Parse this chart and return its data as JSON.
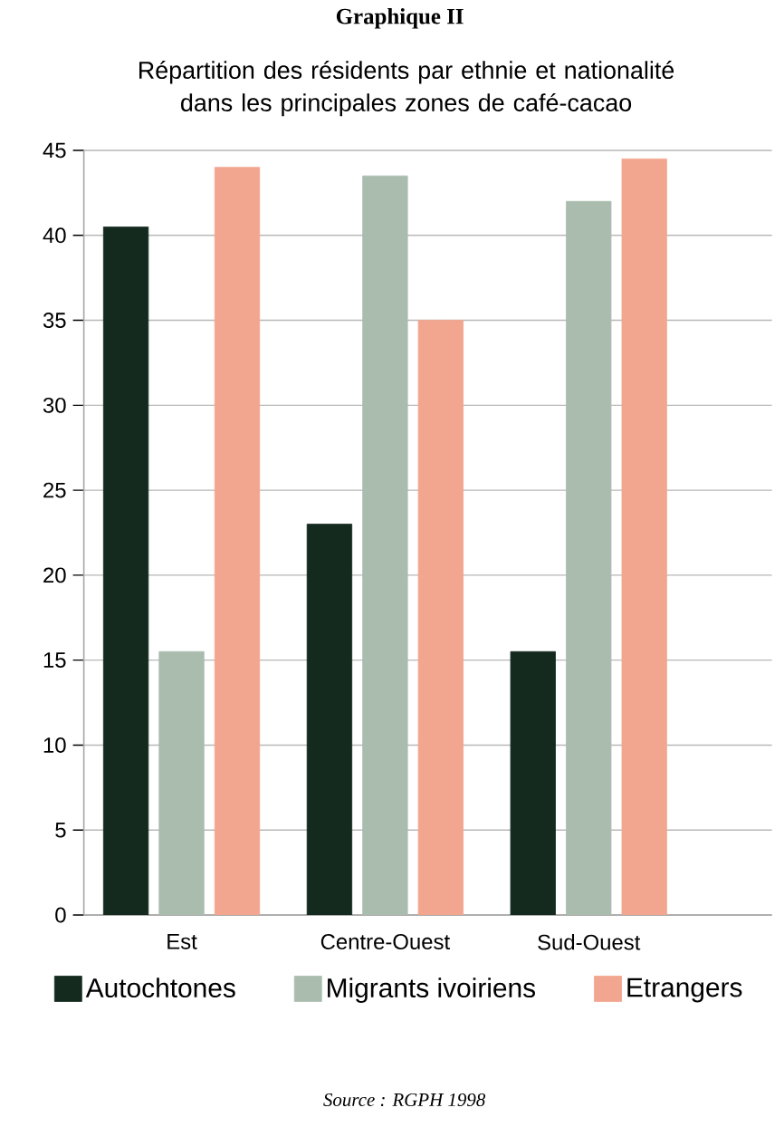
{
  "chart_data": {
    "type": "bar",
    "title": "Graphique II",
    "subtitle": "Répartition des résidents par ethnie et nationalité dans les principales zones de café-cacao",
    "categories": [
      "Est",
      "Centre-Ouest",
      "Sud-Ouest"
    ],
    "series": [
      {
        "name": "Autochtones",
        "color": "#142a1e",
        "values": [
          40.5,
          23,
          15.5
        ]
      },
      {
        "name": "Migrants ivoiriens",
        "color": "#a9bcae",
        "values": [
          15.5,
          43.5,
          42
        ]
      },
      {
        "name": "Etrangers",
        "color": "#f2a68f",
        "values": [
          44,
          35,
          44.5
        ]
      }
    ],
    "ylim": [
      0,
      45
    ],
    "yticks": [
      0,
      5,
      10,
      15,
      20,
      25,
      30,
      35,
      40,
      45
    ],
    "grid": "y",
    "legend": "bottom",
    "annotations": [
      "Source : RGPH 1998"
    ]
  }
}
